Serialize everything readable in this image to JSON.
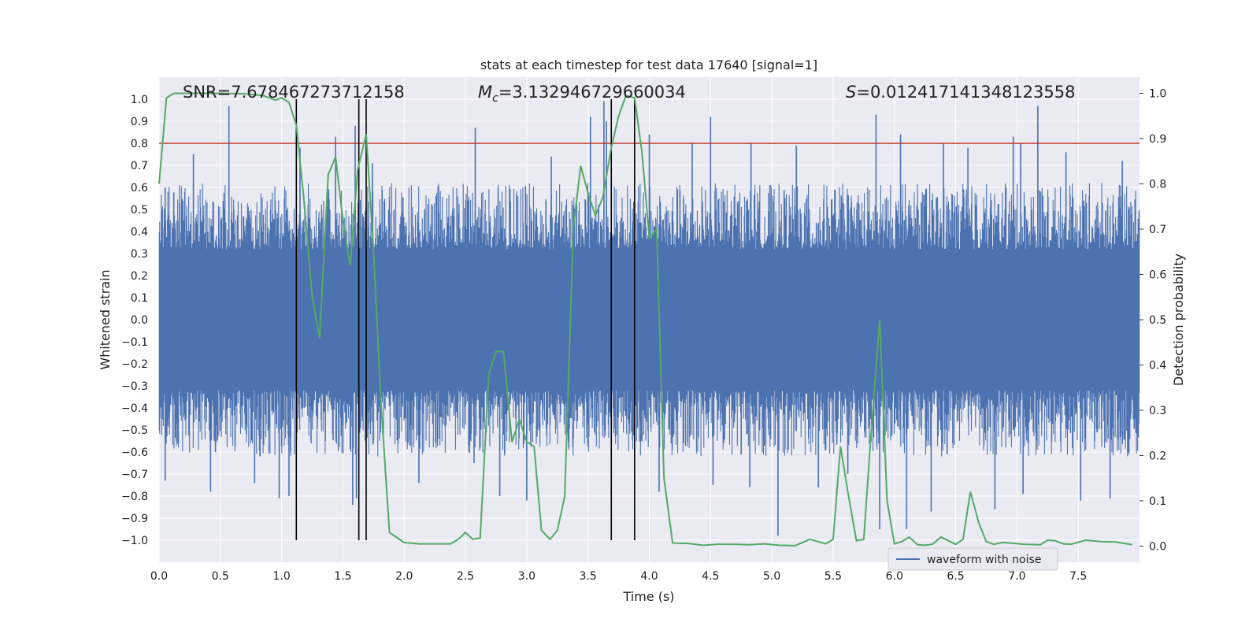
{
  "chart_data": {
    "type": "line",
    "title": "stats at each timestep for test data 17640 [signal=1]",
    "xlabel": "Time (s)",
    "ylabel": "Whitened strain",
    "y2label": "Detection probability",
    "xlim": [
      0,
      8
    ],
    "ylim": [
      -1.1,
      1.1
    ],
    "y2lim": [
      -0.0357,
      1.0357
    ],
    "x_ticks": [
      0.0,
      0.5,
      1.0,
      1.5,
      2.0,
      2.5,
      3.0,
      3.5,
      4.0,
      4.5,
      5.0,
      5.5,
      6.0,
      6.5,
      7.0,
      7.5
    ],
    "x_tick_labels": [
      "0.0",
      "0.5",
      "1.0",
      "1.5",
      "2.0",
      "2.5",
      "3.0",
      "3.5",
      "4.0",
      "4.5",
      "5.0",
      "5.5",
      "6.0",
      "6.5",
      "7.0",
      "7.5"
    ],
    "y_ticks": [
      1.0,
      0.9,
      0.8,
      0.7,
      0.6,
      0.5,
      0.4,
      0.3,
      0.2,
      0.1,
      0.0,
      -0.1,
      -0.2,
      -0.3,
      -0.4,
      -0.5,
      -0.6,
      -0.7,
      -0.8,
      -0.9,
      -1.0
    ],
    "y_tick_labels": [
      "1.0",
      "0.9",
      "0.8",
      "0.7",
      "0.6",
      "0.5",
      "0.4",
      "0.3",
      "0.2",
      "0.1",
      "0.0",
      "−0.1",
      "−0.2",
      "−0.3",
      "−0.4",
      "−0.5",
      "−0.6",
      "−0.7",
      "−0.8",
      "−0.9",
      "−1.0"
    ],
    "y2_ticks": [
      0.0,
      0.1,
      0.2,
      0.3,
      0.4,
      0.5,
      0.6,
      0.7,
      0.8,
      0.9,
      1.0
    ],
    "y2_tick_labels": [
      "0.0",
      "0.1",
      "0.2",
      "0.3",
      "0.4",
      "0.5",
      "0.6",
      "0.7",
      "0.8",
      "0.9",
      "1.0"
    ],
    "stats": {
      "snr": {
        "prefix": "SNR=",
        "value": "7.678467273712158"
      },
      "mc": {
        "symbol": "M",
        "subscript": "c",
        "value": "=3.132946729660034"
      },
      "s": {
        "symbol": "S",
        "value": "=0.012417141348123558"
      }
    },
    "threshold": {
      "y": 0.8,
      "color": "#c0392b"
    },
    "vertical_lines": [
      1.12,
      1.63,
      1.69,
      3.69,
      3.88
    ],
    "series": [
      {
        "name": "waveform with noise",
        "color": "#4c72b0",
        "kind": "noise",
        "peaks_pos": [
          [
            0.05,
            0.6
          ],
          [
            0.28,
            0.75
          ],
          [
            0.57,
            0.97
          ],
          [
            1.15,
            0.78
          ],
          [
            1.44,
            0.83
          ],
          [
            1.6,
            0.88
          ],
          [
            1.74,
            0.71
          ],
          [
            2.58,
            0.87
          ],
          [
            3.2,
            0.74
          ],
          [
            3.52,
            0.92
          ],
          [
            3.63,
            0.99
          ],
          [
            3.65,
            0.9
          ],
          [
            4.0,
            0.84
          ],
          [
            4.35,
            0.8
          ],
          [
            4.5,
            0.92
          ],
          [
            4.83,
            0.8
          ],
          [
            5.2,
            0.79
          ],
          [
            5.85,
            0.93
          ],
          [
            6.05,
            0.84
          ],
          [
            6.4,
            0.8
          ],
          [
            6.6,
            0.78
          ],
          [
            6.97,
            0.83
          ],
          [
            7.03,
            0.8
          ],
          [
            7.17,
            0.97
          ],
          [
            7.4,
            0.76
          ],
          [
            7.86,
            0.72
          ]
        ],
        "peaks_neg": [
          [
            0.05,
            -0.73
          ],
          [
            0.42,
            -0.78
          ],
          [
            0.78,
            -0.74
          ],
          [
            0.98,
            -0.81
          ],
          [
            1.06,
            -0.8
          ],
          [
            1.58,
            -0.84
          ],
          [
            1.61,
            -0.81
          ],
          [
            2.12,
            -0.74
          ],
          [
            2.57,
            -0.65
          ],
          [
            2.78,
            -0.8
          ],
          [
            3.0,
            -0.82
          ],
          [
            4.08,
            -0.78
          ],
          [
            4.52,
            -0.75
          ],
          [
            4.82,
            -0.76
          ],
          [
            5.05,
            -0.98
          ],
          [
            5.38,
            -0.76
          ],
          [
            5.62,
            -0.7
          ],
          [
            5.88,
            -0.95
          ],
          [
            6.1,
            -0.95
          ],
          [
            6.3,
            -0.87
          ],
          [
            6.82,
            -0.86
          ],
          [
            7.05,
            -0.79
          ],
          [
            7.52,
            -0.82
          ],
          [
            7.76,
            -0.81
          ]
        ]
      },
      {
        "name": "detection probability",
        "color": "#55a868",
        "axis": "right",
        "x": [
          0.0,
          0.06,
          0.12,
          0.25,
          0.5,
          0.7,
          0.85,
          0.95,
          1.0,
          1.06,
          1.12,
          1.18,
          1.25,
          1.31,
          1.38,
          1.44,
          1.5,
          1.56,
          1.62,
          1.69,
          1.75,
          1.81,
          1.88,
          2.0,
          2.12,
          2.25,
          2.38,
          2.44,
          2.5,
          2.56,
          2.62,
          2.69,
          2.75,
          2.81,
          2.88,
          2.94,
          3.0,
          3.06,
          3.12,
          3.19,
          3.25,
          3.31,
          3.38,
          3.44,
          3.5,
          3.56,
          3.62,
          3.69,
          3.75,
          3.81,
          3.88,
          3.94,
          4.0,
          4.06,
          4.12,
          4.19,
          4.25,
          4.31,
          4.44,
          4.56,
          4.69,
          4.81,
          4.94,
          5.06,
          5.19,
          5.31,
          5.44,
          5.5,
          5.56,
          5.62,
          5.69,
          5.75,
          5.81,
          5.88,
          5.94,
          6.0,
          6.06,
          6.12,
          6.19,
          6.25,
          6.31,
          6.38,
          6.44,
          6.5,
          6.56,
          6.62,
          6.69,
          6.75,
          6.81,
          6.88,
          6.94,
          7.06,
          7.19,
          7.25,
          7.31,
          7.38,
          7.44,
          7.56,
          7.69,
          7.81,
          7.94
        ],
        "y": [
          0.8,
          0.99,
          1.0,
          1.0,
          1.0,
          0.999,
          0.995,
          0.985,
          0.99,
          0.98,
          0.93,
          0.77,
          0.55,
          0.46,
          0.82,
          0.86,
          0.72,
          0.62,
          0.83,
          0.91,
          0.65,
          0.32,
          0.03,
          0.008,
          0.005,
          0.005,
          0.005,
          0.015,
          0.03,
          0.015,
          0.018,
          0.38,
          0.43,
          0.43,
          0.23,
          0.28,
          0.23,
          0.22,
          0.035,
          0.015,
          0.035,
          0.11,
          0.7,
          0.84,
          0.78,
          0.73,
          0.77,
          0.88,
          0.95,
          0.995,
          0.99,
          0.87,
          0.68,
          0.7,
          0.15,
          0.007,
          0.006,
          0.006,
          0.002,
          0.004,
          0.004,
          0.003,
          0.005,
          0.002,
          0.001,
          0.015,
          0.005,
          0.015,
          0.22,
          0.12,
          0.012,
          0.015,
          0.25,
          0.5,
          0.1,
          0.005,
          0.01,
          0.02,
          0.003,
          0.002,
          0.004,
          0.02,
          0.012,
          0.004,
          0.015,
          0.12,
          0.05,
          0.01,
          0.004,
          0.008,
          0.007,
          0.004,
          0.003,
          0.013,
          0.012,
          0.005,
          0.004,
          0.013,
          0.01,
          0.009,
          0.003
        ]
      }
    ],
    "legend": {
      "location": "lower-right",
      "entries": [
        "waveform with noise"
      ]
    }
  }
}
